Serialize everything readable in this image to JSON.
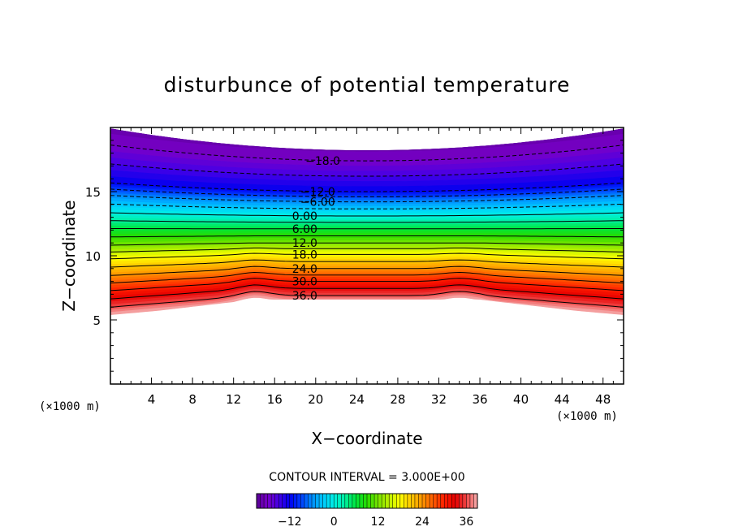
{
  "chart_data": {
    "type": "heatmap",
    "subtype": "filled-contour",
    "title": "disturbunce of potential temperature",
    "xlabel": "X−coordinate",
    "ylabel": "Z−coordinate",
    "x_unit_label": "(×1000 m)",
    "y_unit_label": "(×1000 m)",
    "xlim": [
      0,
      50
    ],
    "ylim": [
      0,
      20
    ],
    "x_ticks": [
      4,
      8,
      12,
      16,
      20,
      24,
      28,
      32,
      36,
      40,
      44,
      48
    ],
    "y_ticks": [
      5,
      10,
      15
    ],
    "contour_interval_text": "CONTOUR INTERVAL = 3.000E+00",
    "contour_interval": 3.0,
    "colorbar": {
      "range": [
        -21,
        39
      ],
      "ticks": [
        -12,
        0,
        12,
        24,
        36
      ],
      "tick_labels": [
        "−12",
        "0",
        "12",
        "24",
        "36"
      ],
      "colormap": "rainbow (purple → blue → cyan → green → yellow → red → pink)"
    },
    "contour_labels": [
      {
        "value": -18,
        "text": "−18.0",
        "x": 19.0,
        "z": 17.4
      },
      {
        "value": -12,
        "text": "−12.0",
        "x": 18.5,
        "z": 15.0
      },
      {
        "value": -6,
        "text": "−6.00",
        "x": 18.5,
        "z": 14.2
      },
      {
        "value": 0,
        "text": "0.00",
        "x": 17.7,
        "z": 13.1
      },
      {
        "value": 6,
        "text": "6.00",
        "x": 17.7,
        "z": 12.1
      },
      {
        "value": 12,
        "text": "12.0",
        "x": 17.7,
        "z": 11.0
      },
      {
        "value": 18,
        "text": "18.0",
        "x": 17.7,
        "z": 10.1
      },
      {
        "value": 24,
        "text": "24.0",
        "x": 17.7,
        "z": 9.0
      },
      {
        "value": 30,
        "text": "30.0",
        "x": 17.7,
        "z": 8.0
      },
      {
        "value": 36,
        "text": "36.0",
        "x": 17.7,
        "z": 6.9
      }
    ],
    "field_description_points": {
      "top_boundary_z_edges": 19.9,
      "top_boundary_z_center": 18.2,
      "bottom_boundary_z_edges": 5.3,
      "bottom_boundary_z_center": 6.6,
      "bump_x": [
        14,
        34
      ]
    },
    "colors": {
      "purple": "#7a00c8",
      "blue": "#0000ff",
      "cyan": "#00e0ff",
      "green": "#00e000",
      "yellow": "#ffff00",
      "red": "#ff0000",
      "pink": "#f0a0a0"
    }
  }
}
